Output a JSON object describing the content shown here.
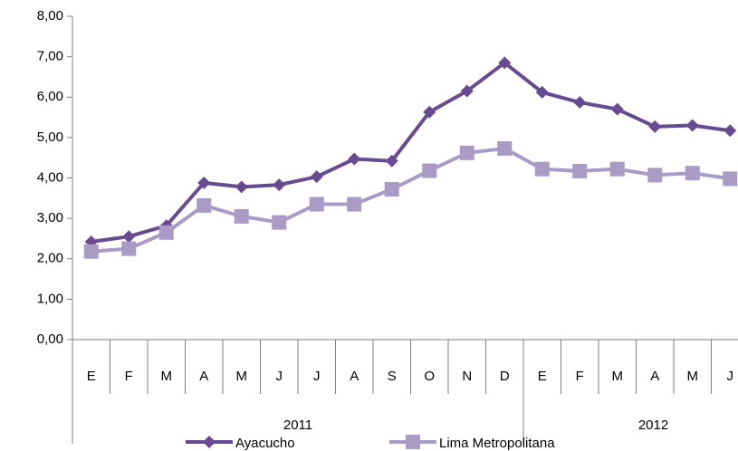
{
  "chart_data": {
    "type": "line",
    "categories": [
      "E",
      "F",
      "M",
      "A",
      "M",
      "J",
      "J",
      "A",
      "S",
      "O",
      "N",
      "D",
      "E",
      "F",
      "M",
      "A",
      "M",
      "J"
    ],
    "category_groups": [
      {
        "name": "2011",
        "count": 12
      },
      {
        "name": "2012",
        "count": 6
      }
    ],
    "series": [
      {
        "name": "Ayacucho",
        "color": "#674a8f",
        "marker": "diamond",
        "values": [
          2.42,
          2.55,
          2.82,
          3.88,
          3.78,
          3.83,
          4.03,
          4.47,
          4.42,
          5.63,
          6.15,
          6.85,
          6.12,
          5.87,
          5.7,
          5.27,
          5.3,
          5.17
        ]
      },
      {
        "name": "Lima Metropolitana",
        "color": "#a99bc6",
        "marker": "square",
        "values": [
          2.18,
          2.25,
          2.65,
          3.32,
          3.05,
          2.9,
          3.35,
          3.35,
          3.72,
          4.18,
          4.62,
          4.73,
          4.22,
          4.17,
          4.22,
          4.07,
          4.12,
          3.98
        ]
      }
    ],
    "ylim": [
      0,
      8
    ],
    "yticks": [
      {
        "value": 0,
        "label": "0,00"
      },
      {
        "value": 1,
        "label": "1,00"
      },
      {
        "value": 2,
        "label": "2,00"
      },
      {
        "value": 3,
        "label": "3,00"
      },
      {
        "value": 4,
        "label": "4,00"
      },
      {
        "value": 5,
        "label": "5,00"
      },
      {
        "value": 6,
        "label": "6,00"
      },
      {
        "value": 7,
        "label": "7,00"
      },
      {
        "value": 8,
        "label": "8,00"
      }
    ],
    "legend": "bottom"
  }
}
